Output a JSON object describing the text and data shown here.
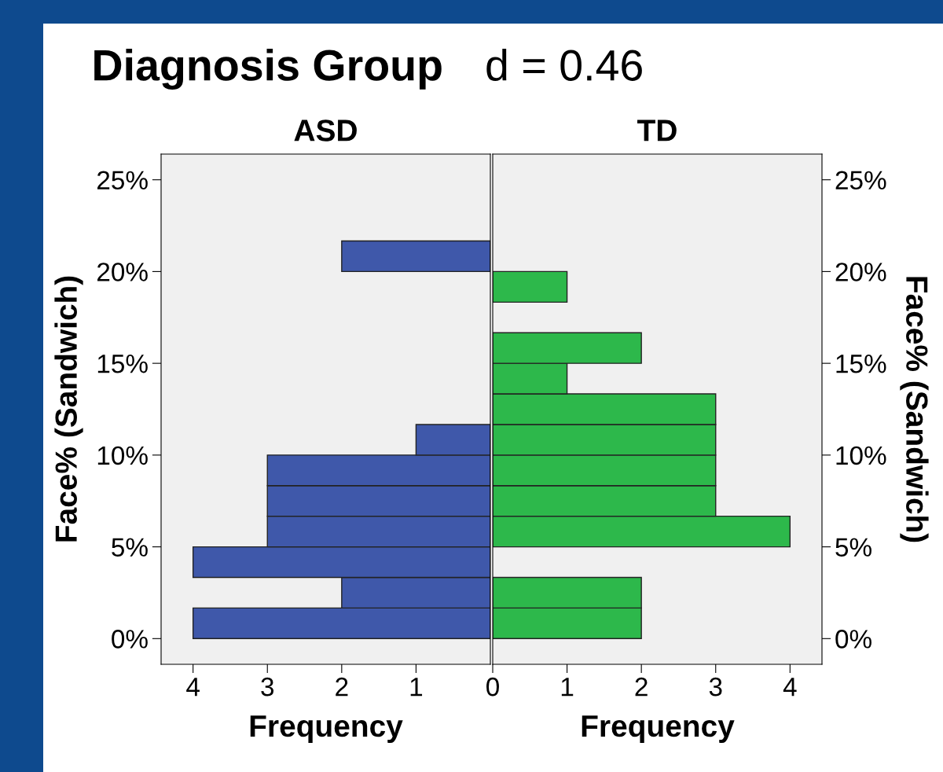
{
  "chart_data": [
    {
      "type": "histogram",
      "orientation": "horizontal",
      "title": "ASD",
      "annotations": [
        "Diagnosis Group"
      ],
      "xlabel": "Frequency",
      "ylabel": "Face% (Sandwich)",
      "color": "#3f58aa",
      "bins": [
        0,
        1.667,
        3.333,
        5,
        6.667,
        8.333,
        10,
        11.667,
        13.333,
        15,
        16.667,
        18.333,
        20,
        21.667
      ],
      "values": [
        4,
        2,
        4,
        3,
        3,
        3,
        1,
        0,
        0,
        0,
        0,
        0,
        2
      ],
      "xlim": [
        4.43,
        0
      ],
      "xticks": [
        4,
        3,
        2,
        1
      ],
      "ylim": [
        -1.4,
        26.4
      ],
      "yticks": [
        {
          "value": 0,
          "label": "0%"
        },
        {
          "value": 5,
          "label": "5%"
        },
        {
          "value": 10,
          "label": "10%"
        },
        {
          "value": 15,
          "label": "15%"
        },
        {
          "value": 20,
          "label": "20%"
        },
        {
          "value": 25,
          "label": "25%"
        }
      ],
      "grid": false,
      "legend": false
    },
    {
      "type": "histogram",
      "orientation": "horizontal",
      "title": "TD",
      "annotations": [
        "d = 0.46"
      ],
      "xlabel": "Frequency",
      "ylabel": "Face% (Sandwich)",
      "color": "#2db84b",
      "bins": [
        0,
        1.667,
        3.333,
        5,
        6.667,
        8.333,
        10,
        11.667,
        13.333,
        15,
        16.667,
        18.333,
        20,
        21.667
      ],
      "values": [
        2,
        2,
        0,
        4,
        3,
        3,
        3,
        3,
        1,
        2,
        0,
        1,
        0
      ],
      "xlim": [
        0,
        4.43
      ],
      "xticks": [
        0,
        1,
        2,
        3,
        4
      ],
      "ylim": [
        -1.4,
        26.4
      ],
      "yticks": [
        {
          "value": 0,
          "label": "0%"
        },
        {
          "value": 5,
          "label": "5%"
        },
        {
          "value": 10,
          "label": "10%"
        },
        {
          "value": 15,
          "label": "15%"
        },
        {
          "value": 20,
          "label": "20%"
        },
        {
          "value": 25,
          "label": "25%"
        }
      ],
      "grid": false,
      "legend": false
    }
  ]
}
